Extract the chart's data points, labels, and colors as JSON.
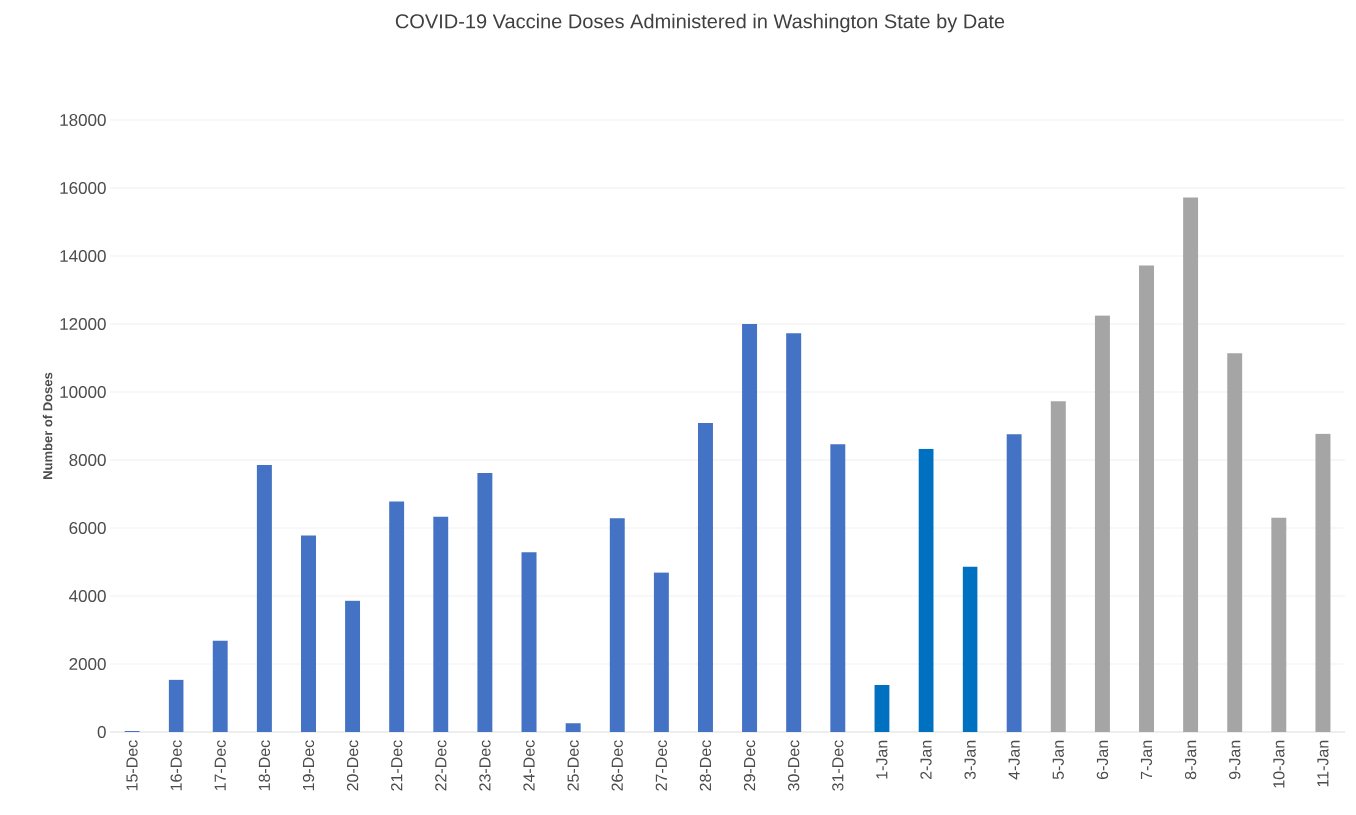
{
  "chart_data": {
    "type": "bar",
    "title": "COVID-19 Vaccine Doses Administered in Washington State by Date",
    "ylabel": "Number of Doses",
    "categories": [
      "15-Dec",
      "16-Dec",
      "17-Dec",
      "18-Dec",
      "19-Dec",
      "20-Dec",
      "21-Dec",
      "22-Dec",
      "23-Dec",
      "24-Dec",
      "25-Dec",
      "26-Dec",
      "27-Dec",
      "28-Dec",
      "29-Dec",
      "30-Dec",
      "31-Dec",
      "1-Jan",
      "2-Jan",
      "3-Jan",
      "4-Jan",
      "5-Jan",
      "6-Jan",
      "7-Jan",
      "8-Jan",
      "9-Jan",
      "10-Jan",
      "11-Jan"
    ],
    "values": [
      30,
      1540,
      2690,
      7850,
      5780,
      3860,
      6780,
      6330,
      7620,
      5290,
      260,
      6290,
      4690,
      9090,
      12000,
      11730,
      8460,
      1380,
      8330,
      4860,
      8760,
      9730,
      12250,
      13720,
      15720,
      11140,
      6300,
      8770
    ],
    "colors": [
      "#4472c4",
      "#4472c4",
      "#4472c4",
      "#4472c4",
      "#4472c4",
      "#4472c4",
      "#4472c4",
      "#4472c4",
      "#4472c4",
      "#4472c4",
      "#4472c4",
      "#4472c4",
      "#4472c4",
      "#4472c4",
      "#4472c4",
      "#4472c4",
      "#4472c4",
      "#0070c0",
      "#0070c0",
      "#0070c0",
      "#4472c4",
      "#a5a5a5",
      "#a5a5a5",
      "#a5a5a5",
      "#a5a5a5",
      "#a5a5a5",
      "#a5a5a5",
      "#a5a5a5"
    ],
    "ylim": [
      0,
      18000
    ],
    "yticks": [
      0,
      2000,
      4000,
      6000,
      8000,
      10000,
      12000,
      14000,
      16000,
      18000
    ],
    "grid": "y"
  }
}
